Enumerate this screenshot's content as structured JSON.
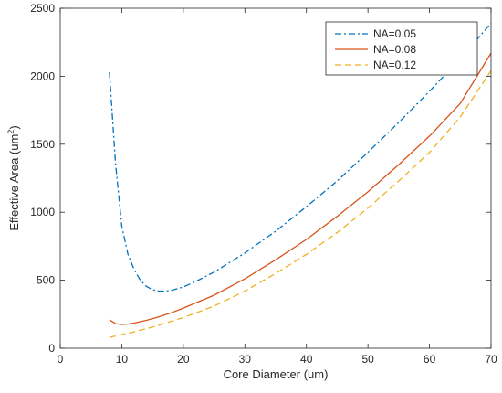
{
  "chart_data": {
    "type": "line",
    "title": "",
    "xlabel": "Core Diameter (um)",
    "ylabel": "Effective Area (um",
    "ylabel_sup": "2",
    "ylabel_close": ")",
    "xlim": [
      0,
      70
    ],
    "ylim": [
      0,
      2500
    ],
    "xticks": [
      0,
      10,
      20,
      30,
      40,
      50,
      60,
      70
    ],
    "yticks": [
      0,
      500,
      1000,
      1500,
      2000,
      2500
    ],
    "grid": false,
    "legend_position": "top-right",
    "series": [
      {
        "name": "NA=0.05",
        "color": "#0072BD",
        "dash": "dash-dot",
        "x": [
          8,
          9,
          10,
          11,
          12,
          13,
          14,
          15,
          16,
          17,
          18,
          20,
          22,
          25,
          30,
          35,
          40,
          45,
          50,
          55,
          60,
          65,
          70
        ],
        "y": [
          2030,
          1350,
          900,
          690,
          580,
          500,
          455,
          430,
          420,
          420,
          425,
          450,
          490,
          560,
          700,
          860,
          1040,
          1230,
          1440,
          1660,
          1890,
          2130,
          2390
        ]
      },
      {
        "name": "NA=0.08",
        "color": "#D95319",
        "dash": "solid",
        "x": [
          8,
          9,
          10,
          11,
          12,
          14,
          16,
          18,
          20,
          25,
          30,
          35,
          40,
          45,
          50,
          55,
          60,
          65,
          70
        ],
        "y": [
          210,
          180,
          175,
          178,
          185,
          205,
          230,
          260,
          295,
          390,
          510,
          650,
          800,
          970,
          1150,
          1350,
          1560,
          1800,
          2170
        ]
      },
      {
        "name": "NA=0.12",
        "color": "#EDB120",
        "dash": "dashed",
        "x": [
          8,
          10,
          12,
          15,
          20,
          25,
          30,
          35,
          40,
          45,
          50,
          55,
          60,
          65,
          70
        ],
        "y": [
          80,
          100,
          120,
          155,
          225,
          310,
          420,
          550,
          690,
          850,
          1030,
          1230,
          1440,
          1700,
          2040
        ]
      }
    ]
  }
}
